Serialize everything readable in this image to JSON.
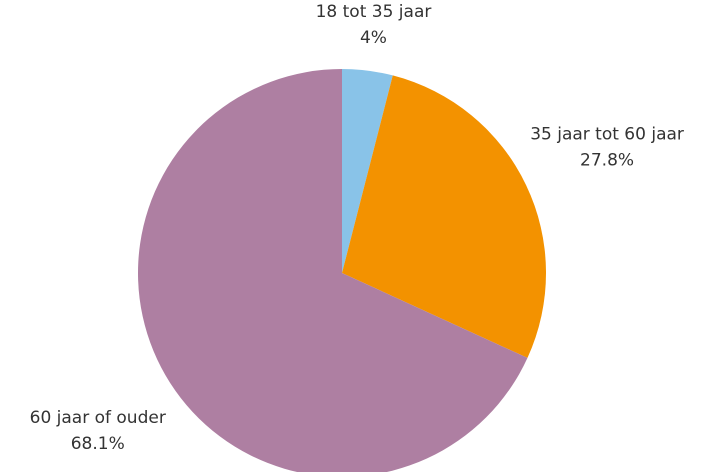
{
  "chart_data": {
    "type": "pie",
    "categories": [
      "18 tot 35 jaar",
      "35 jaar tot 60 jaar",
      "60 jaar of ouder"
    ],
    "values": [
      4,
      27.8,
      68.1
    ],
    "value_labels": [
      "4%",
      "27.8%",
      "68.1%"
    ],
    "colors": [
      "#89c3e8",
      "#f39200",
      "#ae7fa2"
    ]
  }
}
